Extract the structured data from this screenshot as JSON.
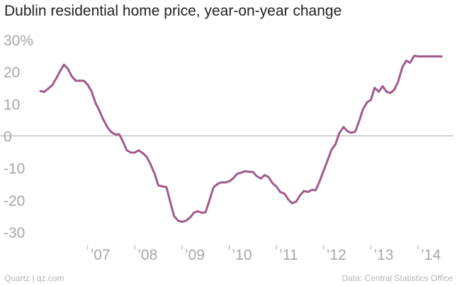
{
  "chart_data": {
    "type": "line",
    "title": "Dublin residential home price, year-on-year change",
    "xlabel": "",
    "ylabel": "",
    "ylim": [
      -35,
      32
    ],
    "xlim": [
      2006.0,
      2014.6
    ],
    "grid": false,
    "line_color": "#a05a8c",
    "y_ticks": [
      {
        "value": 30,
        "label": "30%"
      },
      {
        "value": 20,
        "label": "20"
      },
      {
        "value": 10,
        "label": "10"
      },
      {
        "value": 0,
        "label": "0"
      },
      {
        "value": -10,
        "label": "-10"
      },
      {
        "value": -20,
        "label": "-20"
      },
      {
        "value": -30,
        "label": "-30"
      }
    ],
    "x_ticks": [
      {
        "value": 2007,
        "label": "’07"
      },
      {
        "value": 2008,
        "label": "’08"
      },
      {
        "value": 2009,
        "label": "’09"
      },
      {
        "value": 2010,
        "label": "’10"
      },
      {
        "value": 2011,
        "label": "’11"
      },
      {
        "value": 2012,
        "label": "’12"
      },
      {
        "value": 2013,
        "label": "’13"
      },
      {
        "value": 2014,
        "label": "’14"
      }
    ],
    "series": [
      {
        "name": "Year-on-year change",
        "x": [
          2006.0,
          2006.08,
          2006.17,
          2006.25,
          2006.33,
          2006.42,
          2006.5,
          2006.58,
          2006.67,
          2006.75,
          2006.83,
          2006.92,
          2007.0,
          2007.08,
          2007.17,
          2007.25,
          2007.33,
          2007.42,
          2007.5,
          2007.58,
          2007.67,
          2007.75,
          2007.83,
          2007.92,
          2008.0,
          2008.08,
          2008.17,
          2008.25,
          2008.33,
          2008.42,
          2008.5,
          2008.58,
          2008.67,
          2008.75,
          2008.83,
          2008.92,
          2009.0,
          2009.08,
          2009.17,
          2009.25,
          2009.33,
          2009.42,
          2009.5,
          2009.58,
          2009.67,
          2009.75,
          2009.83,
          2009.92,
          2010.0,
          2010.08,
          2010.17,
          2010.25,
          2010.33,
          2010.42,
          2010.5,
          2010.58,
          2010.67,
          2010.75,
          2010.83,
          2010.92,
          2011.0,
          2011.08,
          2011.17,
          2011.25,
          2011.33,
          2011.42,
          2011.5,
          2011.58,
          2011.67,
          2011.75,
          2011.83,
          2011.92,
          2012.0,
          2012.08,
          2012.17,
          2012.25,
          2012.33,
          2012.42,
          2012.5,
          2012.58,
          2012.67,
          2012.75,
          2012.83,
          2012.92,
          2013.0,
          2013.08,
          2013.17,
          2013.25,
          2013.33,
          2013.42,
          2013.5,
          2013.58,
          2013.67,
          2013.75,
          2013.83,
          2013.92,
          2014.0,
          2014.08,
          2014.17,
          2014.25,
          2014.33,
          2014.42,
          2014.5
        ],
        "values": [
          14.0,
          13.7,
          14.8,
          15.8,
          17.8,
          20.3,
          22.2,
          21.0,
          18.5,
          17.2,
          17.2,
          17.2,
          16.0,
          14.0,
          10.2,
          7.9,
          5.2,
          2.7,
          1.2,
          0.5,
          0.5,
          -1.8,
          -4.5,
          -5.2,
          -5.2,
          -4.5,
          -5.4,
          -6.5,
          -8.7,
          -11.8,
          -15.5,
          -15.7,
          -16.0,
          -20.5,
          -25.0,
          -26.5,
          -26.8,
          -26.5,
          -25.5,
          -24.0,
          -23.5,
          -24.0,
          -23.8,
          -20.2,
          -16.0,
          -15.0,
          -14.5,
          -14.5,
          -14.2,
          -13.3,
          -11.8,
          -11.5,
          -11.0,
          -11.2,
          -11.2,
          -12.5,
          -13.3,
          -12.2,
          -12.8,
          -14.8,
          -15.8,
          -17.5,
          -18.0,
          -19.8,
          -21.0,
          -20.5,
          -18.5,
          -17.2,
          -17.5,
          -16.8,
          -17.0,
          -14.0,
          -10.8,
          -7.8,
          -4.2,
          -2.7,
          0.8,
          2.8,
          1.5,
          1.0,
          1.3,
          4.5,
          8.2,
          10.5,
          11.2,
          15.0,
          13.8,
          15.5,
          13.8,
          13.4,
          14.5,
          17.0,
          21.5,
          23.5,
          22.8,
          25.0,
          24.8,
          24.8,
          24.8,
          24.8,
          24.8,
          24.8,
          24.8
        ]
      }
    ]
  },
  "footer": {
    "left": "Quartz | qz.com",
    "right": "Data: Central Statistics Office"
  }
}
